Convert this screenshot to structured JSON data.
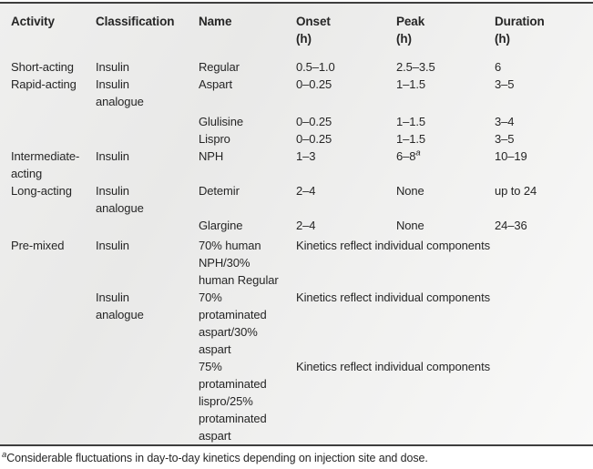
{
  "colors": {
    "rule": "#3e3e3e",
    "text": "#262626",
    "panel_bg_light": "#f9f9f8",
    "panel_bg_dark": "#e9e9e8"
  },
  "table": {
    "columns": [
      "Activity",
      "Classification",
      "Name",
      "Onset\n(h)",
      "Peak\n(h)",
      "Duration\n(h)"
    ],
    "rows": [
      {
        "activity": "Short-acting",
        "classification": "Insulin",
        "name": "Regular",
        "onset": "0.5–1.0",
        "peak": "2.5–3.5",
        "duration": "6"
      },
      {
        "activity": "Rapid-acting",
        "classification": "Insulin\nanalogue",
        "name": "Aspart",
        "onset": "0–0.25",
        "peak": "1–1.5",
        "duration": "3–5"
      },
      {
        "activity": "",
        "classification": "",
        "name": "Glulisine",
        "onset": "0–0.25",
        "peak": "1–1.5",
        "duration": "3–4"
      },
      {
        "activity": "",
        "classification": "",
        "name": "Lispro",
        "onset": "0–0.25",
        "peak": "1–1.5",
        "duration": "3–5"
      },
      {
        "activity": "Intermediate-\nacting",
        "classification": "Insulin",
        "name": "NPH",
        "onset": "1–3",
        "peak": "6–8",
        "peak_sup": "a",
        "duration": "10–19"
      },
      {
        "activity": "Long-acting",
        "classification": "Insulin\nanalogue",
        "name": "Detemir",
        "onset": "2–4",
        "peak": "None",
        "duration": "up to 24"
      },
      {
        "activity": "",
        "classification": "",
        "name": "Glargine",
        "onset": "2–4",
        "peak": "None",
        "duration": "24–36"
      },
      {
        "activity": "Pre-mixed",
        "classification": "Insulin",
        "name": "70% human\nNPH/30%\nhuman Regular",
        "kinetics": "Kinetics reflect individual components"
      },
      {
        "activity": "",
        "classification": "Insulin\nanalogue",
        "name": "70%\nprotaminated\naspart/30%\naspart",
        "kinetics": "Kinetics reflect individual components"
      },
      {
        "activity": "",
        "classification": "",
        "name": "75%\nprotaminated\nlispro/25%\nprotaminated\naspart",
        "kinetics": "Kinetics reflect individual components"
      }
    ]
  },
  "footnote": {
    "marker": "a",
    "text": "Considerable fluctuations in day-to-day kinetics depending on injection site and dose."
  }
}
